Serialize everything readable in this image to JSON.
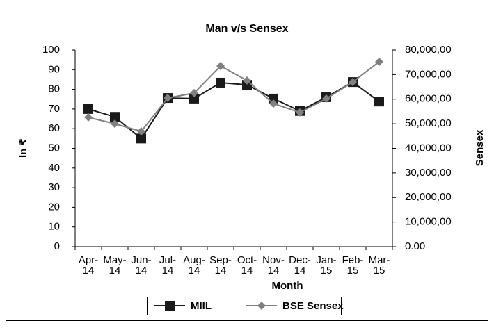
{
  "chart_data": {
    "type": "line",
    "title": "Man v/s Sensex",
    "x_label": "Month",
    "y_label": "In ₹",
    "y2_label": "Sensex",
    "categories": [
      "Apr-14",
      "May-14",
      "Jun-14",
      "Jul-14",
      "Aug-14",
      "Sep-14",
      "Oct-14",
      "Nov-14",
      "Dec-14",
      "Jan-15",
      "Feb-15",
      "Mar-15"
    ],
    "series": [
      {
        "name": "MIIL",
        "color": "#1a1a1a",
        "values": [
          70,
          66,
          55,
          75.6,
          75.3,
          83.4,
          82.3,
          75.3,
          69,
          76,
          83.7,
          73.8
        ]
      },
      {
        "name": "BSE Sensex",
        "color": "#808080",
        "axis": "y2",
        "values": [
          52600,
          50000,
          46900,
          60500,
          62500,
          73500,
          67600,
          58200,
          54600,
          60200,
          67000,
          75200
        ]
      }
    ],
    "ylim": [
      0,
      100
    ],
    "yticks": [
      0,
      10,
      20,
      30,
      40,
      50,
      60,
      70,
      80,
      90,
      100
    ],
    "y2lim": [
      0,
      80000
    ],
    "y2ticks": [
      {
        "value": 0,
        "label": "0.00"
      },
      {
        "value": 10000,
        "label": "10,000,00"
      },
      {
        "value": 20000,
        "label": "20,000,00"
      },
      {
        "value": 30000,
        "label": "30,000,00"
      },
      {
        "value": 40000,
        "label": "40,000,00"
      },
      {
        "value": 50000,
        "label": "50,000,00"
      },
      {
        "value": 60000,
        "label": "60,000,00"
      },
      {
        "value": 70000,
        "label": "70,000,00"
      },
      {
        "value": 80000,
        "label": "80,000,00"
      }
    ],
    "legend": "bottom",
    "grid": false
  }
}
